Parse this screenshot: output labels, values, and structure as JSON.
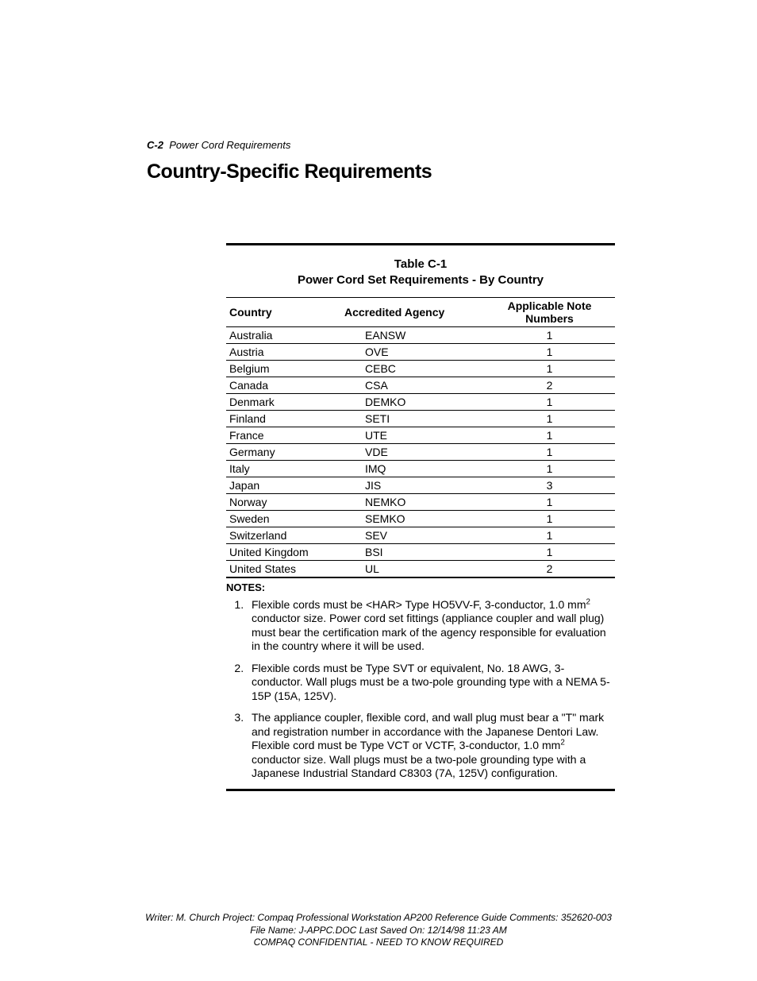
{
  "header": {
    "page_num": "C-2",
    "chapter_title": "Power Cord Requirements"
  },
  "section_title": "Country-Specific Requirements",
  "table": {
    "caption_line1": "Table C-1",
    "caption_line2": "Power Cord Set Requirements - By Country",
    "columns": [
      "Country",
      "Accredited Agency",
      "Applicable Note Numbers"
    ],
    "rows": [
      [
        "Australia",
        "EANSW",
        "1"
      ],
      [
        "Austria",
        "OVE",
        "1"
      ],
      [
        "Belgium",
        "CEBC",
        "1"
      ],
      [
        "Canada",
        "CSA",
        "2"
      ],
      [
        "Denmark",
        "DEMKO",
        "1"
      ],
      [
        "Finland",
        "SETI",
        "1"
      ],
      [
        "France",
        "UTE",
        "1"
      ],
      [
        "Germany",
        "VDE",
        "1"
      ],
      [
        "Italy",
        "IMQ",
        "1"
      ],
      [
        "Japan",
        "JIS",
        "3"
      ],
      [
        "Norway",
        "NEMKO",
        "1"
      ],
      [
        "Sweden",
        "SEMKO",
        "1"
      ],
      [
        "Switzerland",
        "SEV",
        "1"
      ],
      [
        "United Kingdom",
        "BSI",
        "1"
      ],
      [
        "United States",
        "UL",
        "2"
      ]
    ],
    "notes_label": "NOTES:",
    "notes": [
      {
        "pre": "Flexible cords must be <HAR> Type HO5VV-F, 3-conductor, 1.0 mm",
        "sup": "2",
        "post": " conductor size. Power cord set fittings (appliance coupler and wall plug) must bear the certification mark of the agency responsible for evaluation in the country where it will be used."
      },
      {
        "pre": "Flexible cords must be Type SVT or equivalent, No. 18 AWG, 3-conductor. Wall plugs must be a two-pole grounding type with a NEMA 5-15P (15A, 125V).",
        "sup": "",
        "post": ""
      },
      {
        "pre": "The appliance coupler, flexible cord, and wall plug must bear a \"T\" mark and registration number in accordance with the Japanese Dentori Law. Flexible cord must be Type VCT or VCTF, 3-conductor, 1.0 mm",
        "sup": "2",
        "post": " conductor size. Wall plugs must be a two-pole grounding type with a Japanese Industrial Standard C8303 (7A, 125V) configuration."
      }
    ]
  },
  "footer": {
    "line1": "Writer: M. Church   Project: Compaq Professional Workstation AP200 Reference Guide   Comments: 352620-003",
    "line2": "File Name: J-APPC.DOC   Last Saved On: 12/14/98 11:23 AM",
    "line3": "COMPAQ CONFIDENTIAL - NEED TO KNOW REQUIRED"
  }
}
